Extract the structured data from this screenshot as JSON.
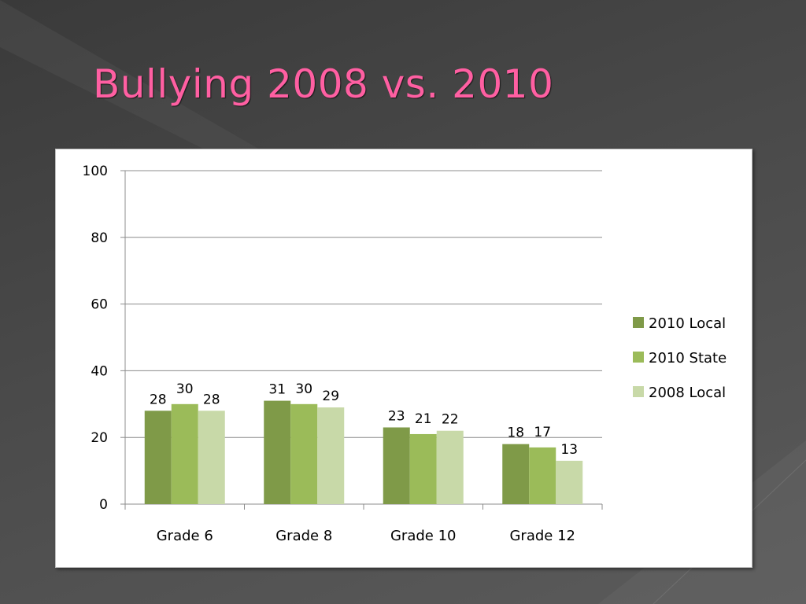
{
  "slide": {
    "title": "Bullying 2008 vs. 2010",
    "title_color": "#ff5fa2"
  },
  "chart_data": {
    "type": "bar",
    "title": "",
    "xlabel": "",
    "ylabel": "",
    "categories": [
      "Grade 6",
      "Grade 8",
      "Grade 10",
      "Grade 12"
    ],
    "series": [
      {
        "name": "2010 Local",
        "values": [
          28,
          31,
          23,
          18
        ],
        "color": "#7f9a48"
      },
      {
        "name": "2010 State",
        "values": [
          30,
          30,
          21,
          17
        ],
        "color": "#9bbb59"
      },
      {
        "name": "2008 Local",
        "values": [
          28,
          29,
          22,
          13
        ],
        "color": "#c8d9a8"
      }
    ],
    "ylim": [
      0,
      100
    ],
    "yticks": [
      0,
      20,
      40,
      60,
      80,
      100
    ],
    "grid": true,
    "legend": "right"
  }
}
